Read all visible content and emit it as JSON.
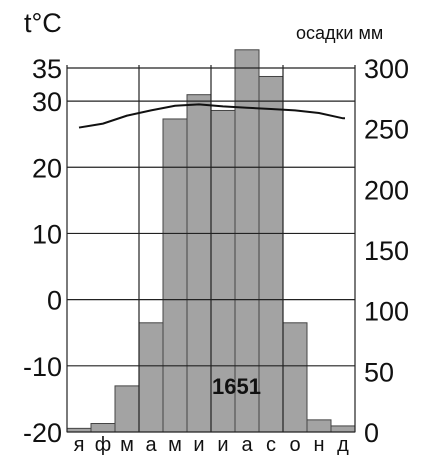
{
  "chart_data": {
    "type": "bar",
    "left_axis_label": "t°C",
    "right_axis_label": "осадки  мм",
    "months": [
      "я",
      "ф",
      "м",
      "а",
      "м",
      "и",
      "и",
      "а",
      "с",
      "о",
      "н",
      "д"
    ],
    "precipitation_mm": [
      3,
      7,
      38,
      90,
      258,
      278,
      265,
      315,
      293,
      90,
      10,
      5
    ],
    "temperature_c": [
      26,
      26.6,
      27.8,
      28.6,
      29.3,
      29.5,
      29.2,
      29,
      28.8,
      28.6,
      28.2,
      27.4
    ],
    "annual_total_label": "1651",
    "left_ticks": [
      "35",
      "30",
      "20",
      "10",
      "0",
      "-10",
      "-20"
    ],
    "right_ticks": [
      "300",
      "250",
      "200",
      "150",
      "100",
      "50",
      "0"
    ],
    "temp_range": [
      -20,
      35
    ],
    "precip_range": [
      0,
      300
    ],
    "grid": true,
    "colors": {
      "bar": "#a3a3a3",
      "bar_edge": "#444444",
      "temp_line": "#111111",
      "grid": "#222222"
    }
  }
}
